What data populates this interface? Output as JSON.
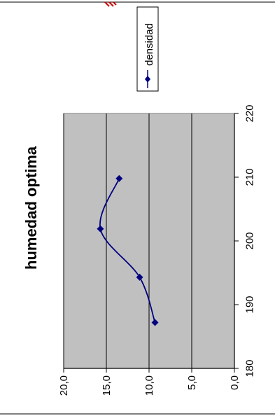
{
  "chart_data": {
    "type": "line",
    "title": "humedad optima",
    "xlabel": "",
    "ylabel": "",
    "x_ticks": [
      "180",
      "190",
      "200",
      "210",
      "220"
    ],
    "y_ticks": [
      "0,0",
      "5,0",
      "10,0",
      "15,0",
      "20,0"
    ],
    "xlim": [
      180,
      220
    ],
    "ylim": [
      0,
      20
    ],
    "grid": true,
    "legend_position": "top-right",
    "orientation": "rotated-90",
    "series": [
      {
        "name": "densidad",
        "color": "#000080",
        "marker": "diamond",
        "smooth": true,
        "x": [
          187.2,
          194.3,
          201.9,
          209.8
        ],
        "y": [
          9.3,
          11.1,
          15.7,
          13.5
        ]
      }
    ]
  },
  "page": {
    "border_color": "#000000",
    "plot_background": "#c0c0c0",
    "watermark_color": "#cc0000"
  }
}
